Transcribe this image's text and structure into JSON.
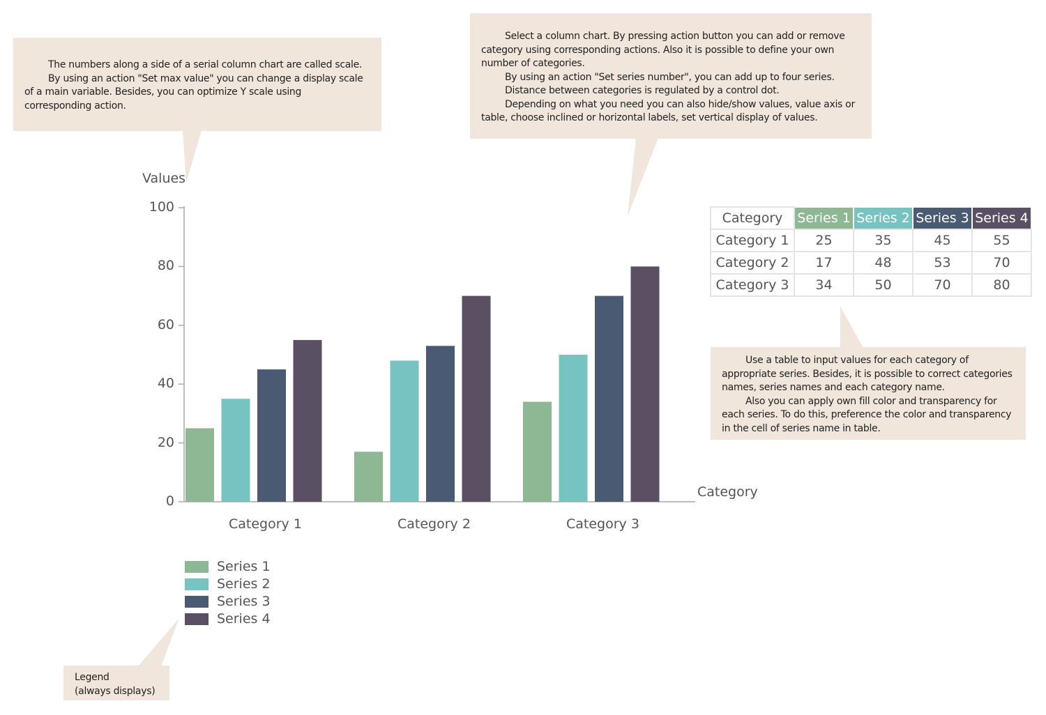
{
  "callouts": {
    "scale": [
      "The numbers along a side of a serial column chart are called scale.",
      "By using an action \"Set max value\" you can change a display scale of a main variable. Besides, you can optimize Y scale using corresponding action."
    ],
    "column": [
      "Select a column chart. By pressing action button you can add or remove category using corresponding actions. Also it is possible to define your own number of categories.",
      "By using an action \"Set series number\", you can add up to four series.",
      "Distance between categories is regulated by a control dot.",
      "Depending on what you need you can also hide/show values, value axis or table, choose inclined or horizontal labels, set vertical display of values."
    ],
    "table": [
      "Use a table to input values for each category of appropriate series. Besides, it is possible to correct categories names, series names and each category name.",
      "Also you can apply own fill color and transparency for each series. To do this, preference the color and transparency in the cell of series name in table."
    ],
    "legend": [
      "Legend",
      "(always displays)"
    ]
  },
  "chart_data": {
    "type": "bar",
    "ylabel": "Values",
    "xlabel": "Category",
    "ylim": [
      0,
      100
    ],
    "yticks": [
      0,
      20,
      40,
      60,
      80,
      100
    ],
    "categories": [
      "Category 1",
      "Category 2",
      "Category 3"
    ],
    "series": [
      {
        "name": "Series 1",
        "color": "#8db893",
        "values": [
          25,
          17,
          34
        ]
      },
      {
        "name": "Series 2",
        "color": "#77c3c2",
        "values": [
          35,
          48,
          50
        ]
      },
      {
        "name": "Series 3",
        "color": "#4b5a73",
        "values": [
          45,
          53,
          70
        ]
      },
      {
        "name": "Series 4",
        "color": "#5a4f63",
        "values": [
          55,
          70,
          80
        ]
      }
    ],
    "legend": "bottom-left",
    "table_header": "Category"
  }
}
